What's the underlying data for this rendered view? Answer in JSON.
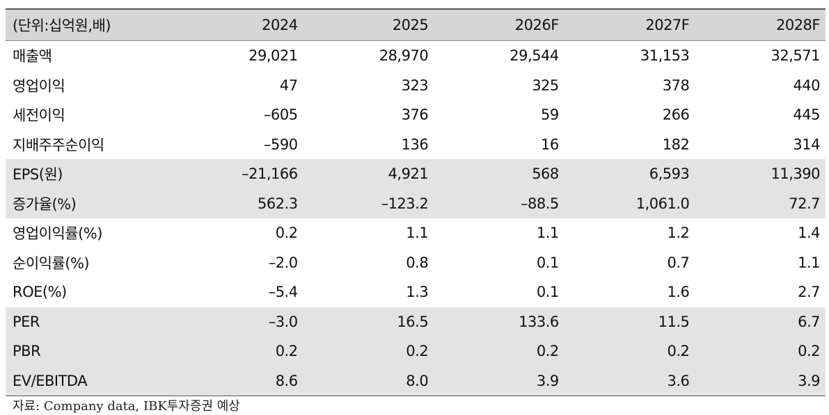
{
  "table": {
    "header": [
      "(단위:십억원,배)",
      "2024",
      "2025",
      "2026F",
      "2027F",
      "2028F"
    ],
    "rows": [
      [
        "매출액",
        "29,021",
        "28,970",
        "29,544",
        "31,153",
        "32,571"
      ],
      [
        "영업이익",
        "47",
        "323",
        "325",
        "378",
        "440"
      ],
      [
        "세전이익",
        "–605",
        "376",
        "59",
        "266",
        "445"
      ],
      [
        "지배주주순이익",
        "–590",
        "136",
        "16",
        "182",
        "314"
      ],
      [
        "EPS(원)",
        "–21,166",
        "4,921",
        "568",
        "6,593",
        "11,390"
      ],
      [
        "증가율(%)",
        "562.3",
        "–123.2",
        "–88.5",
        "1,061.0",
        "72.7"
      ],
      [
        "영업이익률(%)",
        "0.2",
        "1.1",
        "1.1",
        "1.2",
        "1.4"
      ],
      [
        "순이익률(%)",
        "–2.0",
        "0.8",
        "0.1",
        "0.7",
        "1.1"
      ],
      [
        "ROE(%)",
        "–5.4",
        "1.3",
        "0.1",
        "1.6",
        "2.7"
      ],
      [
        "PER",
        "–3.0",
        "16.5",
        "133.6",
        "11.5",
        "6.7"
      ],
      [
        "PBR",
        "0.2",
        "0.2",
        "0.2",
        "0.2",
        "0.2"
      ],
      [
        "EV/EBITDA",
        "8.6",
        "8.0",
        "3.9",
        "3.6",
        "3.9"
      ]
    ]
  },
  "source": "자료: Company data, IBK투자증권 예상"
}
